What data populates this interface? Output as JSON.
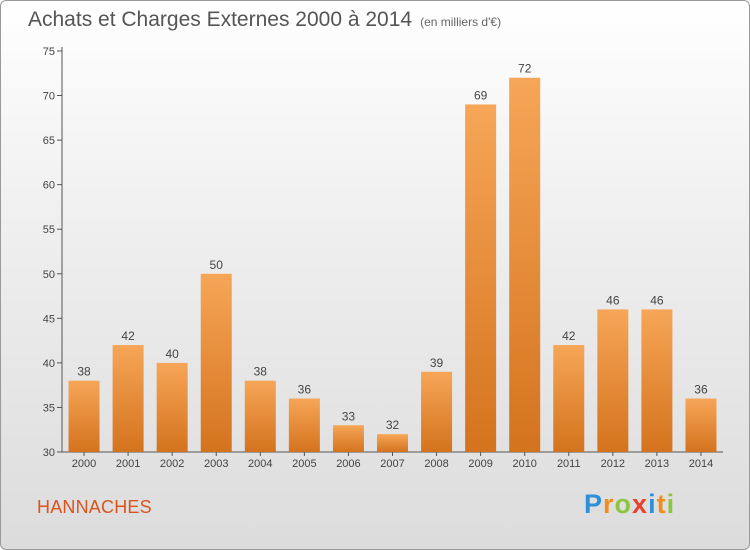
{
  "chart_data": {
    "type": "bar",
    "title": "Achats et Charges Externes 2000 à 2014",
    "subtitle": "(en milliers d'€)",
    "categories": [
      "2000",
      "2001",
      "2002",
      "2003",
      "2004",
      "2005",
      "2006",
      "2007",
      "2008",
      "2009",
      "2010",
      "2011",
      "2012",
      "2013",
      "2014"
    ],
    "values": [
      38,
      42,
      40,
      50,
      38,
      36,
      33,
      32,
      39,
      69,
      72,
      42,
      46,
      46,
      36
    ],
    "ylim": [
      30,
      75
    ],
    "yticks": [
      30,
      35,
      40,
      45,
      50,
      55,
      60,
      65,
      70,
      75
    ],
    "grid": false,
    "bar_color_light": "#f6a657",
    "bar_color_dark": "#d4731e"
  },
  "commune": "HANNACHES",
  "logo": {
    "letters": [
      "P",
      "r",
      "o",
      "x",
      "i",
      "t",
      "i"
    ],
    "colors": [
      "#2f8fd8",
      "#f28c1c",
      "#8cc63f",
      "#e8422e",
      "#2f8fd8",
      "#f28c1c",
      "#8cc63f"
    ]
  }
}
